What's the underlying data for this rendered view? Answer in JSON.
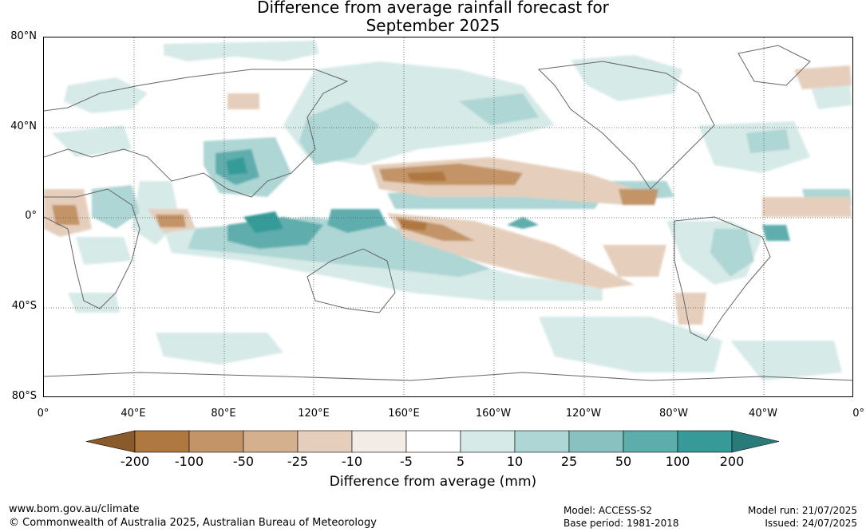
{
  "title": {
    "line1": "Difference from average rainfall forecast for",
    "line2": "September 2025"
  },
  "map": {
    "lat_labels": [
      "80°N",
      "40°N",
      "0°",
      "40°S",
      "80°S"
    ],
    "lon_labels": [
      "0°",
      "40°E",
      "80°E",
      "120°E",
      "160°E",
      "160°W",
      "120°W",
      "80°W",
      "40°W",
      "0°"
    ],
    "grid": "dotted",
    "projection": "plate carree, 0° to 360°"
  },
  "colorbar": {
    "title": "Difference from average (mm)",
    "tick_labels": [
      "-200",
      "-100",
      "-50",
      "-25",
      "-10",
      "-5",
      "5",
      "10",
      "25",
      "50",
      "100",
      "200"
    ],
    "colors": [
      "#8a5a2b",
      "#b07841",
      "#c29468",
      "#d5b08f",
      "#e5cfbc",
      "#f2ebe6",
      "#ffffff",
      "#d6eae8",
      "#add6d4",
      "#88c1c0",
      "#5eadad",
      "#369b98",
      "#287b79"
    ]
  },
  "footer": {
    "url": "www.bom.gov.au/climate",
    "copyright": "© Commonwealth of Australia 2025, Australian Bureau of Meteorology",
    "model": "Model: ACCESS-S2",
    "base_period": "Base period: 1981-2018",
    "model_run": "Model run: 21/07/2025",
    "issued": "Issued: 24/07/2025"
  }
}
